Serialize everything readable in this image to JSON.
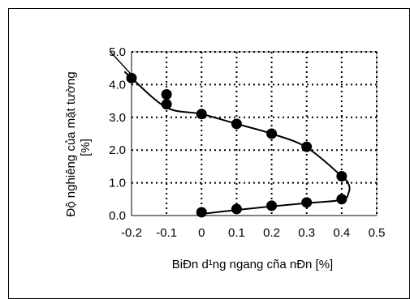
{
  "chart_data": {
    "type": "line",
    "xlabel": "BiÐn d¹ng ngang cña nÐn [%]",
    "ylabel_line1": "Độ nghiêng của mặt tường",
    "ylabel_line2": "[%]",
    "xlim": [
      -0.2,
      0.5
    ],
    "ylim": [
      0.0,
      5.0
    ],
    "x_ticks": [
      -0.2,
      -0.1,
      0,
      0.1,
      0.2,
      0.3,
      0.4,
      0.5
    ],
    "x_tick_labels": [
      "-0.2",
      "-0.1",
      "0",
      "0.1",
      "0.2",
      "0.3",
      "0.4",
      "0.5"
    ],
    "y_ticks": [
      0.0,
      1.0,
      2.0,
      3.0,
      4.0,
      5.0
    ],
    "y_tick_labels": [
      "0.0",
      "1.0",
      "2.0",
      "3.0",
      "4.0",
      "5.0"
    ],
    "grid": true,
    "points": [
      {
        "x": 0.0,
        "y": 0.1
      },
      {
        "x": 0.1,
        "y": 0.2
      },
      {
        "x": 0.2,
        "y": 0.3
      },
      {
        "x": 0.3,
        "y": 0.4
      },
      {
        "x": 0.4,
        "y": 0.5
      },
      {
        "x": 0.4,
        "y": 1.2
      },
      {
        "x": 0.3,
        "y": 2.1
      },
      {
        "x": 0.2,
        "y": 2.5
      },
      {
        "x": 0.1,
        "y": 2.8
      },
      {
        "x": 0.0,
        "y": 3.1
      },
      {
        "x": -0.1,
        "y": 3.4
      },
      {
        "x": -0.1,
        "y": 3.7
      },
      {
        "x": -0.2,
        "y": 4.2
      }
    ],
    "curve": [
      [
        0.0,
        0.05
      ],
      [
        0.1,
        0.17
      ],
      [
        0.2,
        0.28
      ],
      [
        0.3,
        0.38
      ],
      [
        0.4,
        0.48
      ],
      [
        0.42,
        0.7
      ],
      [
        0.42,
        0.95
      ],
      [
        0.4,
        1.2
      ],
      [
        0.3,
        2.08
      ],
      [
        0.2,
        2.5
      ],
      [
        0.1,
        2.8
      ],
      [
        0.0,
        3.1
      ],
      [
        -0.1,
        3.3
      ],
      [
        -0.2,
        4.2
      ],
      [
        -0.22,
        4.4
      ]
    ],
    "extra_segment": [
      [
        -0.2,
        4.3
      ],
      [
        -0.26,
        5.0
      ]
    ]
  }
}
